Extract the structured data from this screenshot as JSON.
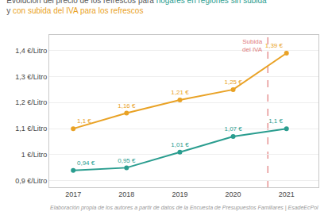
{
  "chart_data": {
    "type": "line",
    "title": [
      [
        {
          "text": "Evolución del precio de los refrescos para ",
          "color": "#555555"
        },
        {
          "text": "hogares en regiones sin subida",
          "color": "#2a9d8f"
        }
      ],
      [
        {
          "text": "y ",
          "color": "#555555"
        },
        {
          "text": "con subida del IVA para los refrescos",
          "color": "#e9a225"
        }
      ]
    ],
    "x": [
      2017,
      2018,
      2019,
      2020,
      2021
    ],
    "series": [
      {
        "color": "#2a9d8f",
        "marker": "circle",
        "values": [
          0.94,
          0.95,
          1.01,
          1.07,
          1.1
        ],
        "value_labels": [
          "0,94 €",
          "0,95 €",
          "1,01 €",
          "1,07 €",
          "1,1 €"
        ]
      },
      {
        "color": "#e9a225",
        "marker": "circle",
        "values": [
          1.1,
          1.16,
          1.21,
          1.25,
          1.39
        ],
        "value_labels": [
          "1,1 €",
          "1,16 €",
          "1,21 €",
          "1,25 €",
          "1,39 €"
        ]
      }
    ],
    "data_labels": true,
    "xlim": [
      2016.55,
      2021.6
    ],
    "xticks": [
      2017,
      2018,
      2019,
      2020,
      2021
    ],
    "ylim": [
      0.875,
      1.46
    ],
    "yticks": [
      {
        "value": 0.9,
        "label": "0,9 €/Litro"
      },
      {
        "value": 1.0,
        "label": "1 €/Litro"
      },
      {
        "value": 1.1,
        "label": "1,1 €/Litro"
      },
      {
        "value": 1.2,
        "label": "1,2 €/Litro"
      },
      {
        "value": 1.3,
        "label": "1,3 €/Litro"
      },
      {
        "value": 1.4,
        "label": "1,4 €/Litro"
      }
    ],
    "grid": true,
    "annotations": [
      {
        "type": "vline",
        "x": 2020.65,
        "text": "Subida\ndel IVA",
        "color": "#e07a7a",
        "line_style": "dashed"
      }
    ],
    "footer": "Elaboración propia de los autores a partir de datos de la Encuesta de Presupuestos Familiares | EsadeEcPol"
  }
}
